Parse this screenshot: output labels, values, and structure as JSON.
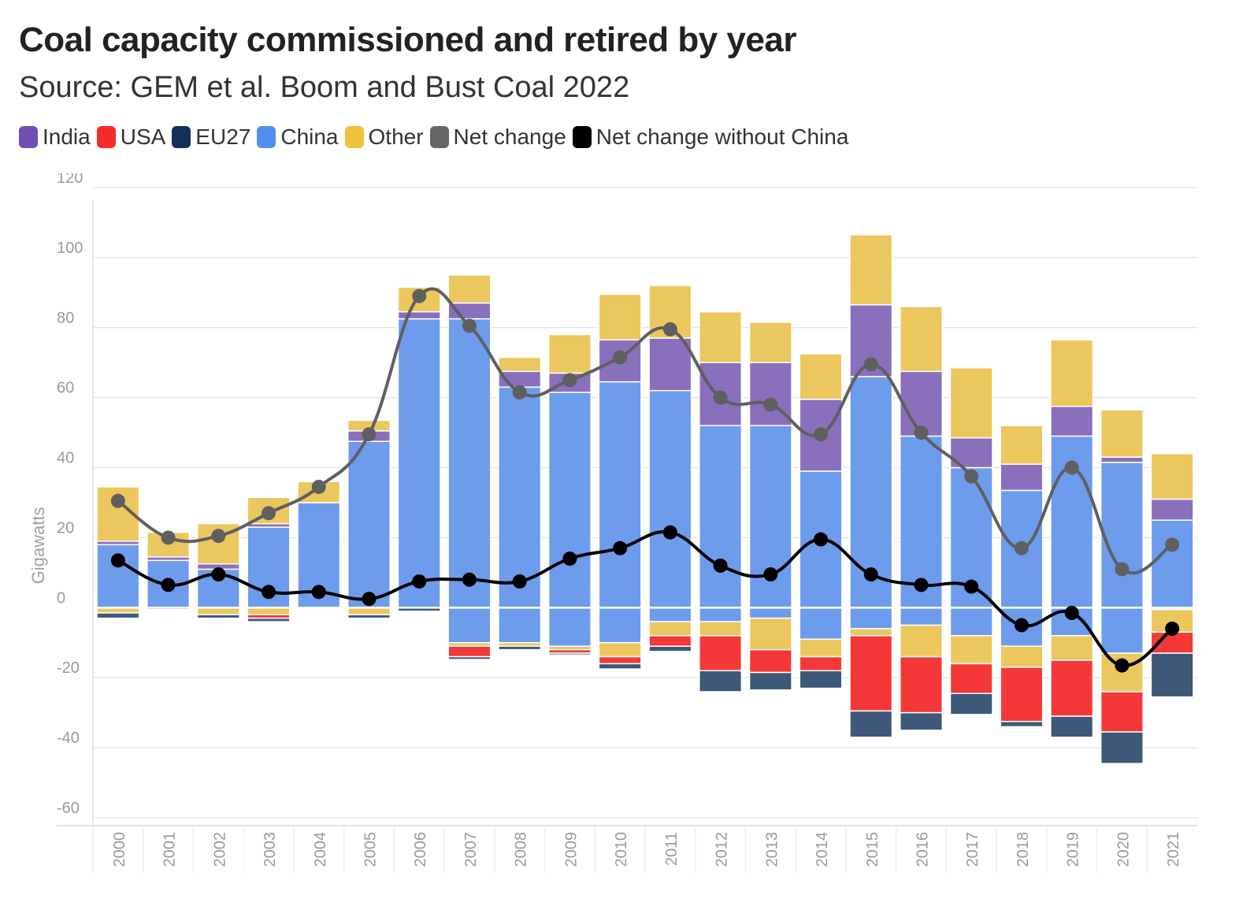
{
  "title": "Coal capacity commissioned and retired by year",
  "subtitle": "Source: GEM et al. Boom and Bust Coal 2022",
  "legend": [
    {
      "name": "India",
      "color": "#6f4fb5"
    },
    {
      "name": "USA",
      "color": "#f52a2a"
    },
    {
      "name": "EU27",
      "color": "#14305a"
    },
    {
      "name": "China",
      "color": "#4f8ff0"
    },
    {
      "name": "Other",
      "color": "#f0c13f"
    },
    {
      "name": "Net change",
      "color": "#666666"
    },
    {
      "name": "Net change without China",
      "color": "#000000"
    }
  ],
  "chart_data": {
    "type": "bar",
    "stacked": true,
    "ylabel": "Gigawatts",
    "ylim": [
      -60,
      120
    ],
    "yticks": [
      120,
      100,
      80,
      60,
      40,
      20,
      0,
      -20,
      -40,
      -60
    ],
    "categories": [
      "2000",
      "2001",
      "2002",
      "2003",
      "2004",
      "2005",
      "2006",
      "2007",
      "2008",
      "2009",
      "2010",
      "2011",
      "2012",
      "2013",
      "2014",
      "2015",
      "2016",
      "2017",
      "2018",
      "2019",
      "2020",
      "2021"
    ],
    "series": [
      {
        "name": "China",
        "color": "#6d9cec",
        "positive": [
          18,
          13.5,
          11,
          23,
          30,
          47.5,
          82.5,
          82.5,
          63,
          61.5,
          64.5,
          62,
          52,
          52,
          39,
          66,
          49,
          40,
          33.5,
          49,
          41.5,
          25
        ],
        "negative": [
          0,
          0,
          0,
          0,
          0,
          0,
          0,
          -10,
          -10,
          -11,
          -10,
          -4,
          -4,
          -3,
          -9,
          -6,
          -5,
          -8,
          -11,
          -8,
          -13,
          -0.5
        ]
      },
      {
        "name": "India",
        "color": "#8a6fbd",
        "positive": [
          1,
          1,
          1.5,
          1,
          0,
          3,
          2,
          4.5,
          4.5,
          5.5,
          12,
          15,
          18,
          18,
          20.5,
          20.5,
          18.5,
          8.5,
          7.5,
          8.5,
          1.5,
          6
        ],
        "negative": [
          0,
          0,
          0,
          0,
          0,
          0,
          0,
          0,
          0,
          0,
          0,
          0,
          0,
          0,
          0,
          0,
          0,
          0,
          0,
          0,
          0,
          0
        ]
      },
      {
        "name": "Other",
        "color": "#ecc75e",
        "positive": [
          15.5,
          7,
          11.5,
          7.5,
          6,
          3,
          7,
          8,
          4,
          11,
          13,
          15,
          14.5,
          11.5,
          13,
          20,
          18.5,
          20,
          11,
          19,
          13.5,
          13
        ],
        "negative": [
          -1.5,
          0,
          -2,
          -2,
          -0.2,
          -2,
          0,
          -1,
          -1,
          -1,
          -4,
          -4,
          -4,
          -9,
          -5,
          -2,
          -9,
          -8,
          -6,
          -7,
          -11,
          -6.5
        ]
      },
      {
        "name": "USA",
        "color": "#f43838",
        "negative": [
          0,
          0,
          0,
          -1,
          0,
          0,
          0,
          -3,
          0,
          -1,
          -2,
          -3,
          -10,
          -6.5,
          -4,
          -21.5,
          -16,
          -8.5,
          -15.5,
          -16,
          -11.5,
          -6
        ]
      },
      {
        "name": "EU27",
        "color": "#3d5878",
        "negative": [
          -1.5,
          -0.5,
          -1,
          -1,
          -0.3,
          -1,
          -1,
          -0.8,
          -1,
          -0.5,
          -1.5,
          -1.5,
          -6,
          -5,
          -5,
          -7.5,
          -5,
          -6,
          -1.5,
          -6,
          -9,
          -12.5
        ]
      }
    ],
    "lines": [
      {
        "name": "Net change",
        "color": "#5f5f5f",
        "values": [
          30.5,
          20,
          20.5,
          27,
          34.5,
          49.5,
          89,
          80.5,
          61.5,
          65,
          71.5,
          79.5,
          60,
          58,
          49.5,
          69.5,
          50,
          37.5,
          17,
          40,
          11,
          18
        ]
      },
      {
        "name": "Net change without China",
        "color": "#000000",
        "values": [
          13.5,
          6.5,
          9.5,
          4.5,
          4.5,
          2.5,
          7.5,
          8,
          7.5,
          14,
          17,
          21.5,
          12,
          9.5,
          19.5,
          9.5,
          6.5,
          6,
          -5,
          -1.5,
          -16.5,
          -6
        ]
      }
    ]
  }
}
